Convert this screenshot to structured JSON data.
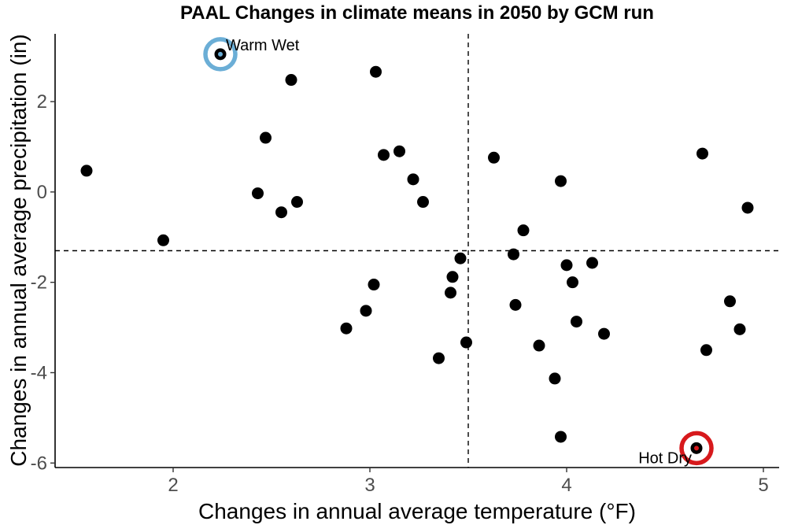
{
  "chart_data": {
    "type": "scatter",
    "title": "PAAL Changes in climate means in 2050 by GCM run",
    "xlabel": "Changes in annual average temperature (°F)",
    "ylabel": "Changes in annual average precipitation (in)",
    "xlim": [
      1.4,
      5.08
    ],
    "ylim": [
      -6.1,
      3.5
    ],
    "x_ticks": [
      2,
      3,
      4,
      5
    ],
    "y_ticks": [
      2,
      0,
      -2,
      -4,
      -6
    ],
    "x_tick_labels": [
      "2",
      "3",
      "4",
      "5"
    ],
    "y_tick_labels": [
      "2",
      "0",
      "-2",
      "-4",
      "-6"
    ],
    "grid": false,
    "reference_lines": {
      "vertical_x": 3.5,
      "horizontal_y": -1.3
    },
    "points": [
      {
        "x": 1.56,
        "y": 0.47
      },
      {
        "x": 1.95,
        "y": -1.07
      },
      {
        "x": 2.24,
        "y": 3.05
      },
      {
        "x": 2.43,
        "y": -0.03
      },
      {
        "x": 2.47,
        "y": 1.2
      },
      {
        "x": 2.55,
        "y": -0.45
      },
      {
        "x": 2.6,
        "y": 2.48
      },
      {
        "x": 2.63,
        "y": -0.22
      },
      {
        "x": 2.88,
        "y": -3.02
      },
      {
        "x": 2.98,
        "y": -2.63
      },
      {
        "x": 3.02,
        "y": -2.05
      },
      {
        "x": 3.03,
        "y": 2.66
      },
      {
        "x": 3.07,
        "y": 0.82
      },
      {
        "x": 3.15,
        "y": 0.9
      },
      {
        "x": 3.22,
        "y": 0.28
      },
      {
        "x": 3.27,
        "y": -0.22
      },
      {
        "x": 3.35,
        "y": -3.68
      },
      {
        "x": 3.41,
        "y": -2.23
      },
      {
        "x": 3.42,
        "y": -1.88
      },
      {
        "x": 3.46,
        "y": -1.47
      },
      {
        "x": 3.49,
        "y": -3.33
      },
      {
        "x": 3.63,
        "y": 0.76
      },
      {
        "x": 3.73,
        "y": -1.38
      },
      {
        "x": 3.74,
        "y": -2.5
      },
      {
        "x": 3.78,
        "y": -0.85
      },
      {
        "x": 3.86,
        "y": -3.4
      },
      {
        "x": 3.94,
        "y": -4.13
      },
      {
        "x": 3.97,
        "y": 0.24
      },
      {
        "x": 3.97,
        "y": -5.42
      },
      {
        "x": 4.0,
        "y": -1.62
      },
      {
        "x": 4.03,
        "y": -2.0
      },
      {
        "x": 4.05,
        "y": -2.87
      },
      {
        "x": 4.13,
        "y": -1.57
      },
      {
        "x": 4.19,
        "y": -3.14
      },
      {
        "x": 4.66,
        "y": -5.67
      },
      {
        "x": 4.69,
        "y": 0.85
      },
      {
        "x": 4.71,
        "y": -3.5
      },
      {
        "x": 4.83,
        "y": -2.42
      },
      {
        "x": 4.88,
        "y": -3.04
      },
      {
        "x": 4.92,
        "y": -0.35
      }
    ],
    "highlights": [
      {
        "label": "Warm Wet",
        "x": 2.24,
        "y": 3.05,
        "color": "#6BAED6",
        "label_position": "top-right"
      },
      {
        "label": "Hot Dry",
        "x": 4.66,
        "y": -5.67,
        "color": "#D7191C",
        "label_position": "bottom-left"
      }
    ],
    "colors": {
      "points": "#000000",
      "reference_lines": "#000000",
      "axes": "#000000",
      "tick_labels": "#4d4d4d"
    }
  }
}
